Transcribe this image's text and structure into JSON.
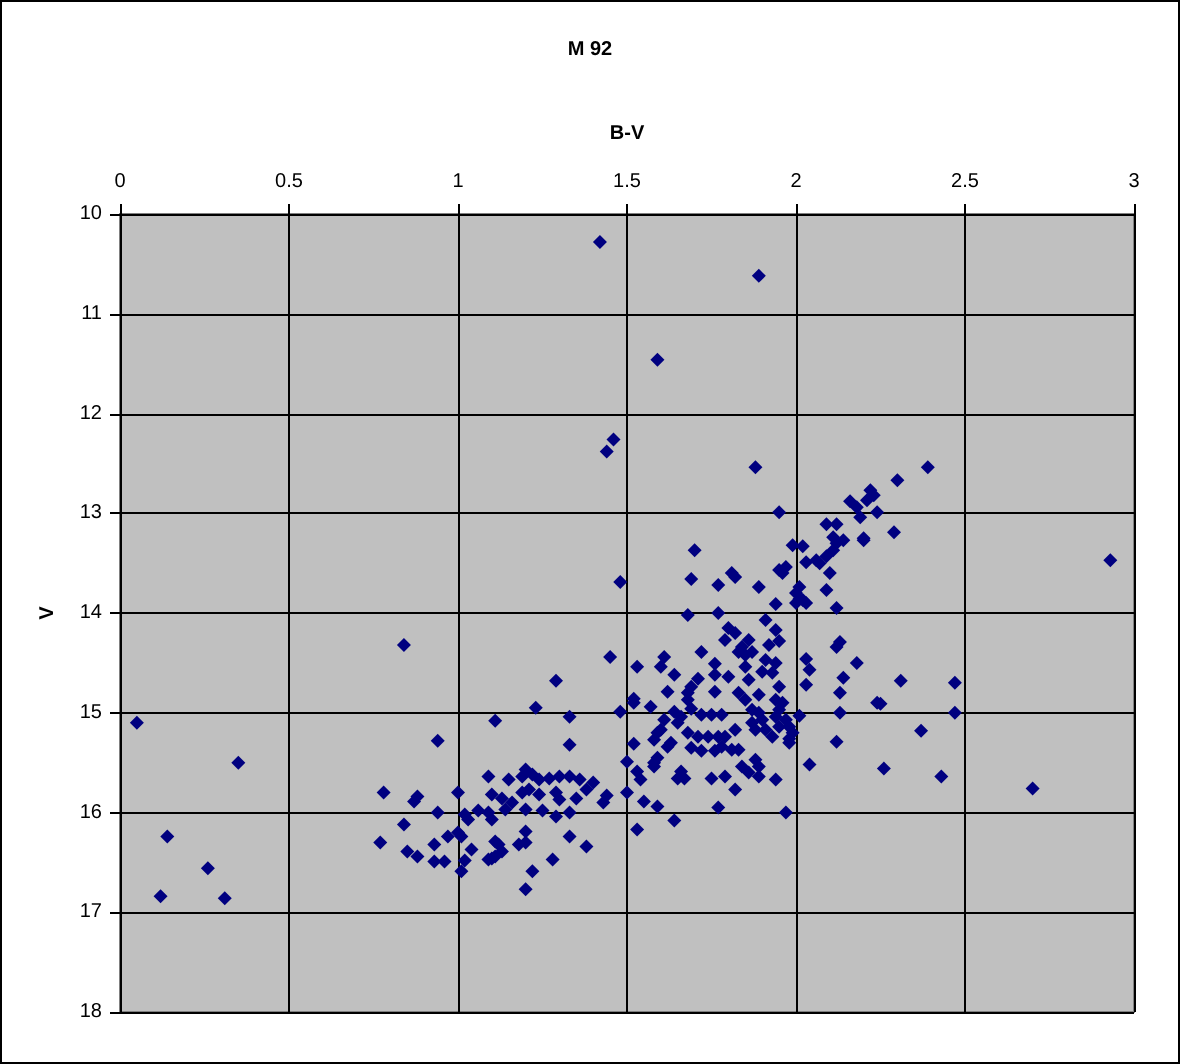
{
  "chart_data": {
    "type": "scatter",
    "title": "M 92",
    "xlabel": "B-V",
    "ylabel": "V",
    "x": [
      1.42,
      1.59,
      1.46,
      1.44,
      1.7,
      1.69,
      1.48,
      1.68,
      1.89,
      1.88,
      2.39,
      2.3,
      2.22,
      2.23,
      2.21,
      2.16,
      2.18,
      2.19,
      2.24,
      1.95,
      2.09,
      2.12,
      2.11,
      2.2,
      2.29,
      2.93,
      2.31,
      2.47,
      2.25,
      2.47,
      2.37,
      2.26,
      2.43,
      2.7,
      0.84,
      0.05,
      0.35,
      0.14,
      0.26,
      0.12,
      0.31,
      0.94,
      1.11,
      0.78,
      0.88,
      0.87,
      1.0,
      0.94,
      1.09,
      1.1,
      1.02,
      1.03,
      1.06,
      1.09,
      1.1,
      0.84,
      0.77,
      0.97,
      1.0,
      1.01,
      0.93,
      0.85,
      0.88,
      0.93,
      0.96,
      1.02,
      1.01,
      1.04,
      1.09,
      1.11,
      1.11,
      1.45,
      1.53,
      1.61,
      1.6,
      1.64,
      1.72,
      1.76,
      1.76,
      1.29,
      1.23,
      1.33,
      1.48,
      1.52,
      1.52,
      1.57,
      1.62,
      1.69,
      1.68,
      1.71,
      1.76,
      1.64,
      1.66,
      1.61,
      1.65,
      1.69,
      1.72,
      1.75,
      1.78,
      1.71,
      1.74,
      1.77,
      1.69,
      1.72,
      1.76,
      1.33,
      1.52,
      1.59,
      1.58,
      1.6,
      1.63,
      1.62,
      1.5,
      1.59,
      1.58,
      1.58,
      1.53,
      1.54,
      1.65,
      1.67,
      1.66,
      1.75,
      1.5,
      1.55,
      1.59,
      1.64,
      1.53,
      1.77,
      1.15,
      1.19,
      1.2,
      1.22,
      1.24,
      1.27,
      1.3,
      1.33,
      1.36,
      1.4,
      1.13,
      1.16,
      1.19,
      1.21,
      1.24,
      1.29,
      1.3,
      1.35,
      1.38,
      1.44,
      1.43,
      1.14,
      1.2,
      1.25,
      1.29,
      1.33,
      1.2,
      1.33,
      1.38,
      1.12,
      1.13,
      1.1,
      1.18,
      1.2,
      1.28,
      1.22,
      1.2,
      2.06,
      2.14,
      2.12,
      2.11,
      2.09,
      2.07,
      2.2,
      2.03,
      1.99,
      2.02,
      2.1,
      1.95,
      1.97,
      1.96,
      1.89,
      1.81,
      1.82,
      1.77,
      2.01,
      2.0,
      2.02,
      2.0,
      2.03,
      2.01,
      2.09,
      2.12,
      1.94,
      1.77,
      1.91,
      1.8,
      1.82,
      1.79,
      1.94,
      1.95,
      1.92,
      1.86,
      1.84,
      1.83,
      1.85,
      1.87,
      2.13,
      2.12,
      2.03,
      2.18,
      1.91,
      1.94,
      1.93,
      1.9,
      1.85,
      1.86,
      1.8,
      1.68,
      2.04,
      2.14,
      2.13,
      2.03,
      1.83,
      1.85,
      1.89,
      1.95,
      1.94,
      1.96,
      1.95,
      2.24,
      2.13,
      2.01,
      1.87,
      1.89,
      1.9,
      1.87,
      1.88,
      1.91,
      1.94,
      1.97,
      1.95,
      1.98,
      1.99,
      1.98,
      1.98,
      1.93,
      2.12,
      1.82,
      1.79,
      1.68,
      1.78,
      1.81,
      1.83,
      1.84,
      1.86,
      1.88,
      1.89,
      1.89,
      1.79,
      1.82,
      1.94,
      2.04,
      1.97
    ],
    "values": [
      10.28,
      11.46,
      12.26,
      12.38,
      13.37,
      13.66,
      13.69,
      14.02,
      10.62,
      12.54,
      12.54,
      12.67,
      12.77,
      12.82,
      12.87,
      12.88,
      12.94,
      13.04,
      12.99,
      12.99,
      13.11,
      13.11,
      13.24,
      13.25,
      13.19,
      13.47,
      14.68,
      14.7,
      14.91,
      15.0,
      15.18,
      15.56,
      15.64,
      15.76,
      14.32,
      15.1,
      15.5,
      16.24,
      16.56,
      16.84,
      16.86,
      15.28,
      15.08,
      15.8,
      15.84,
      15.89,
      15.8,
      16.0,
      15.64,
      15.82,
      16.02,
      16.07,
      15.98,
      16.0,
      16.07,
      16.12,
      16.3,
      16.24,
      16.2,
      16.24,
      16.32,
      16.39,
      16.44,
      16.49,
      16.49,
      16.48,
      16.59,
      16.37,
      16.47,
      16.29,
      16.44,
      14.44,
      14.54,
      14.44,
      14.54,
      14.62,
      14.39,
      14.51,
      14.62,
      14.68,
      14.95,
      15.04,
      14.99,
      14.86,
      14.9,
      14.94,
      14.79,
      14.74,
      14.8,
      14.66,
      14.79,
      14.99,
      15.04,
      15.07,
      15.1,
      14.96,
      15.02,
      15.02,
      15.02,
      15.24,
      15.24,
      15.24,
      15.35,
      15.38,
      15.38,
      15.32,
      15.31,
      15.2,
      15.27,
      15.17,
      15.3,
      15.34,
      15.49,
      15.45,
      15.5,
      15.54,
      15.59,
      15.67,
      15.66,
      15.66,
      15.59,
      15.66,
      15.8,
      15.89,
      15.94,
      16.08,
      16.17,
      15.95,
      15.67,
      15.64,
      15.57,
      15.62,
      15.67,
      15.66,
      15.64,
      15.64,
      15.67,
      15.7,
      15.86,
      15.9,
      15.8,
      15.77,
      15.82,
      15.8,
      15.87,
      15.86,
      15.77,
      15.83,
      15.9,
      15.97,
      15.97,
      15.98,
      16.04,
      16.0,
      16.19,
      16.24,
      16.34,
      16.32,
      16.39,
      16.46,
      16.32,
      16.3,
      16.47,
      16.59,
      16.77,
      13.47,
      13.27,
      13.3,
      13.37,
      13.43,
      13.5,
      13.27,
      13.49,
      13.32,
      13.33,
      13.6,
      13.57,
      13.54,
      13.6,
      13.74,
      13.6,
      13.64,
      13.72,
      13.74,
      13.8,
      13.87,
      13.9,
      13.9,
      13.86,
      13.77,
      13.95,
      13.91,
      14.0,
      14.07,
      14.15,
      14.2,
      14.27,
      14.17,
      14.28,
      14.32,
      14.27,
      14.34,
      14.39,
      14.42,
      14.39,
      14.29,
      14.34,
      14.46,
      14.5,
      14.47,
      14.5,
      14.6,
      14.59,
      14.54,
      14.67,
      14.64,
      14.87,
      14.57,
      14.65,
      14.8,
      14.72,
      14.8,
      14.87,
      14.82,
      14.74,
      14.87,
      14.9,
      14.97,
      14.9,
      15.0,
      15.03,
      14.97,
      15.0,
      15.07,
      15.1,
      15.17,
      15.17,
      15.04,
      15.07,
      15.14,
      15.14,
      15.2,
      15.26,
      15.3,
      15.24,
      15.29,
      15.17,
      15.24,
      15.2,
      15.34,
      15.37,
      15.37,
      15.54,
      15.6,
      15.47,
      15.54,
      15.64,
      15.64,
      15.77,
      15.67,
      15.52,
      16.0
    ],
    "color": "#000080",
    "marker": "diamond",
    "xlim": [
      0,
      3
    ],
    "xticks": [
      0,
      0.5,
      1,
      1.5,
      2,
      2.5,
      3
    ],
    "ylim": [
      18,
      10
    ],
    "yticks": [
      10,
      11,
      12,
      13,
      14,
      15,
      16,
      17,
      18
    ],
    "grid": true
  }
}
